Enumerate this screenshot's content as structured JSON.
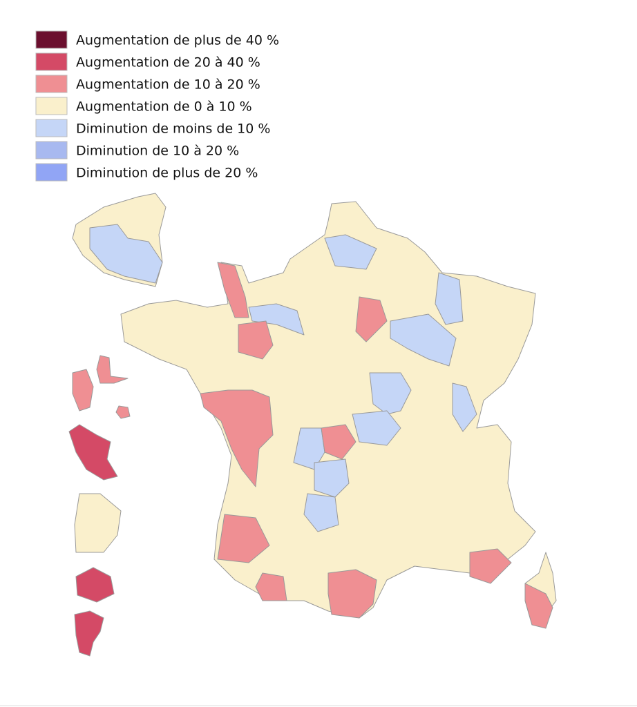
{
  "legend": {
    "items": [
      {
        "label": "Augmentation de plus de 40 %",
        "color": "#6b0f2e"
      },
      {
        "label": "Augmentation de 20 à 40 %",
        "color": "#d44a66"
      },
      {
        "label": "Augmentation de 10 à 20 %",
        "color": "#ef8f93"
      },
      {
        "label": "Augmentation de 0 à 10 %",
        "color": "#faf0cc"
      },
      {
        "label": "Diminution de moins de 10 %",
        "color": "#c5d6f7"
      },
      {
        "label": "Diminution de 10 à 20 %",
        "color": "#a8b9f0"
      },
      {
        "label": "Diminution de plus de 20 %",
        "color": "#91a5f5"
      }
    ]
  }
}
